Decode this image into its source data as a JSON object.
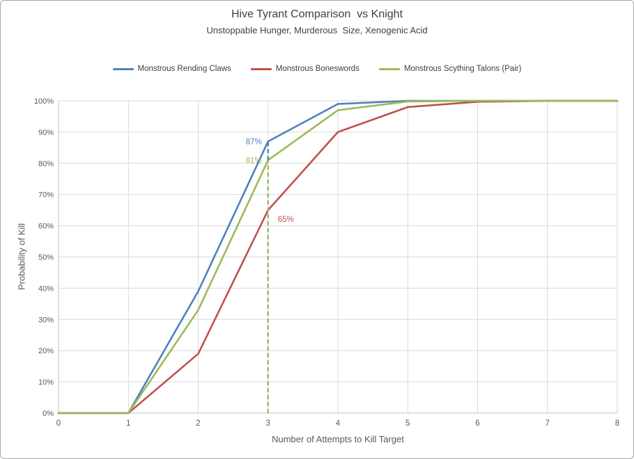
{
  "chart_data": {
    "type": "line",
    "title": "Hive Tyrant Comparison  vs Knight",
    "subtitle": "Unstoppable Hunger, Murderous  Size, Xenogenic Acid",
    "xlabel": "Number of Attempts to Kill Target",
    "ylabel": "Probability of Kill",
    "legend_position": "top",
    "grid": true,
    "axes": {
      "xlim": [
        0,
        8
      ],
      "ylim": [
        0,
        1
      ],
      "x_ticks": [
        0,
        1,
        2,
        3,
        4,
        5,
        6,
        7,
        8
      ],
      "y_tick_values": [
        0,
        0.1,
        0.2,
        0.3,
        0.4,
        0.5,
        0.6,
        0.7,
        0.8,
        0.9,
        1.0
      ],
      "y_tick_labels": [
        "0%",
        "10%",
        "20%",
        "30%",
        "40%",
        "50%",
        "60%",
        "70%",
        "80%",
        "90%",
        "100%"
      ]
    },
    "categories": [
      0,
      1,
      2,
      3,
      4,
      5,
      6,
      7,
      8
    ],
    "series": [
      {
        "name": "Monstrous Rending Claws",
        "color": "#4F81BD",
        "values": [
          0,
          0,
          0.39,
          0.87,
          0.99,
          1.0,
          1.0,
          1.0,
          1.0
        ]
      },
      {
        "name": "Monstrous Boneswords",
        "color": "#C0504D",
        "values": [
          0,
          0,
          0.19,
          0.65,
          0.9,
          0.98,
          0.997,
          1.0,
          1.0
        ]
      },
      {
        "name": "Monstrous Scything Talons (Pair)",
        "color": "#9BBB59",
        "values": [
          0,
          0,
          0.33,
          0.81,
          0.97,
          0.998,
          1.0,
          1.0,
          1.0
        ]
      }
    ],
    "annotations": [
      {
        "text": "87%",
        "x": 3,
        "y": 0.87,
        "color": "#4F81BD",
        "placement": "left"
      },
      {
        "text": "81%",
        "x": 3,
        "y": 0.81,
        "color": "#9BBB59",
        "placement": "left"
      },
      {
        "text": "65%",
        "x": 3,
        "y": 0.65,
        "color": "#C0504D",
        "placement": "below-right"
      }
    ],
    "reference_lines": [
      {
        "x": 3,
        "y_from": 0,
        "y_to": 0.81,
        "color": "#9BBB59",
        "style": "dashed"
      },
      {
        "x": 3,
        "y_from": 0.81,
        "y_to": 0.87,
        "color": "#4F81BD",
        "style": "dashed"
      }
    ],
    "colors": {
      "gridline": "#D9D9D9",
      "axis_line": "#C0C0C0",
      "tick_text": "#595959",
      "title_text": "#3F3F3F"
    }
  }
}
